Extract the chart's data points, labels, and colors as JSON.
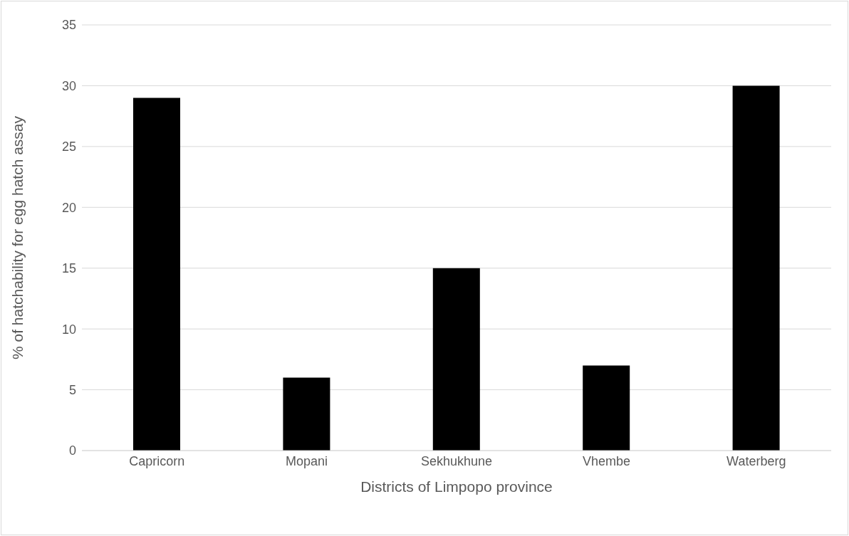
{
  "chart_data": {
    "type": "bar",
    "xlabel": "Districts of Limpopo province",
    "ylabel": "% of hatchability for egg  hatch assay",
    "categories": [
      "Capricorn",
      "Mopani",
      "Sekhukhune",
      "Vhembe",
      "Waterberg"
    ],
    "values": [
      29,
      6,
      15,
      7,
      30
    ],
    "colors": [
      "#000000",
      "#000000",
      "#000000",
      "#000000",
      "#000000"
    ],
    "ylim": [
      0,
      35
    ],
    "yticks": [
      0,
      5,
      10,
      15,
      20,
      25,
      30,
      35
    ],
    "grid": "y",
    "legend": false
  }
}
